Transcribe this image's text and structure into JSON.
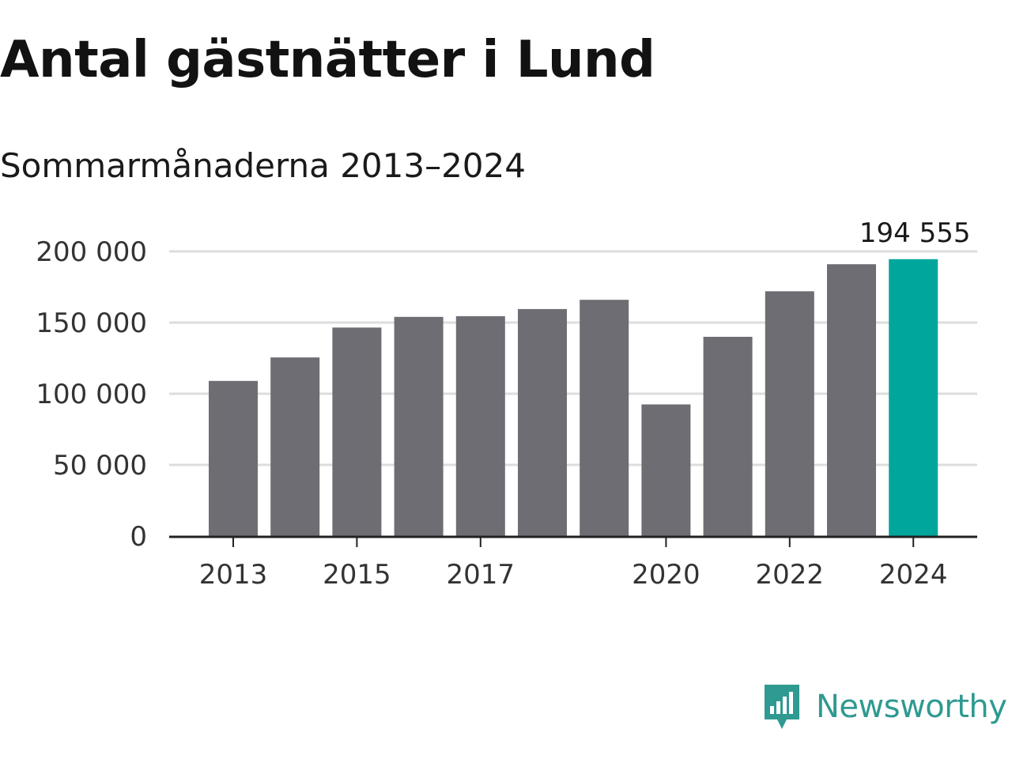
{
  "title": "Antal gästnätter i Lund",
  "subtitle": "Sommarmånaderna 2013–2024",
  "brand": {
    "name": "Newsworthy",
    "icon": "bar-chart-speech-bubble-icon",
    "color": "#2f9a91"
  },
  "colors": {
    "bar": "#6e6d73",
    "highlight": "#00a69c",
    "grid": "#dddddd",
    "axis": "#222222"
  },
  "chart_data": {
    "type": "bar",
    "title": "Antal gästnätter i Lund",
    "subtitle": "Sommarmånaderna 2013–2024",
    "xlabel": "",
    "ylabel": "",
    "categories": [
      "2013",
      "2014",
      "2015",
      "2016",
      "2017",
      "2018",
      "2019",
      "2020",
      "2021",
      "2022",
      "2023",
      "2024"
    ],
    "values": [
      109000,
      125500,
      146500,
      154000,
      154500,
      159500,
      166000,
      92500,
      140000,
      172000,
      191000,
      194555
    ],
    "ylim": [
      0,
      200000
    ],
    "yticks": [
      0,
      50000,
      100000,
      150000,
      200000
    ],
    "ytick_labels": [
      "0",
      "50 000",
      "100 000",
      "150 000",
      "200 000"
    ],
    "xtick_labels": [
      "2013",
      "2015",
      "2017",
      "2020",
      "2022",
      "2024"
    ],
    "highlight_index": 11,
    "data_labels": [
      {
        "index": 11,
        "text": "194 555"
      }
    ],
    "grid": true,
    "legend": "none"
  }
}
